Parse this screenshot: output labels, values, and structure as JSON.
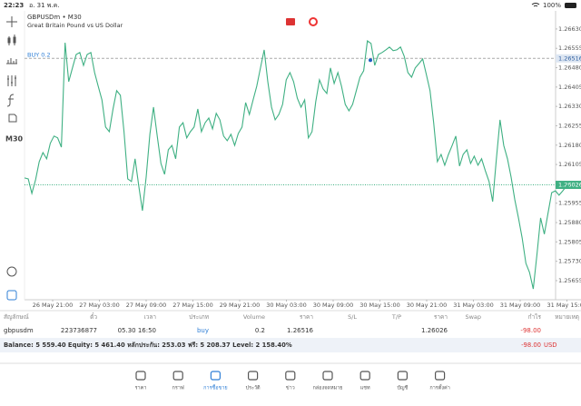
{
  "status_bar": {
    "time": "22:23",
    "date": "อ. 31 พ.ค.",
    "battery": "100%"
  },
  "toolbar": {
    "timeframe": "M30"
  },
  "chart": {
    "type": "line",
    "symbol": "GBPUSDm • M30",
    "description": "Great Britain Pound vs US Dollar",
    "color": "#3fb083",
    "values": [
      1.26053,
      1.26049,
      1.25993,
      1.26046,
      1.26116,
      1.26151,
      1.26127,
      1.26187,
      1.26215,
      1.26208,
      1.26172,
      1.26577,
      1.26426,
      1.26479,
      1.26531,
      1.26539,
      1.26489,
      1.26531,
      1.26539,
      1.26461,
      1.26408,
      1.26355,
      1.2625,
      1.26232,
      1.2632,
      1.26391,
      1.26373,
      1.26232,
      1.26049,
      1.26039,
      1.26127,
      1.26021,
      1.25926,
      1.26056,
      1.26222,
      1.26327,
      1.26215,
      1.26109,
      1.26067,
      1.26162,
      1.26179,
      1.26127,
      1.2625,
      1.26267,
      1.26208,
      1.26232,
      1.2625,
      1.2632,
      1.26232,
      1.26267,
      1.26285,
      1.26243,
      1.26303,
      1.26278,
      1.26215,
      1.26197,
      1.26222,
      1.26179,
      1.26225,
      1.2625,
      1.26345,
      1.26299,
      1.26355,
      1.26408,
      1.26479,
      1.26549,
      1.26426,
      1.26327,
      1.26278,
      1.26299,
      1.26338,
      1.26433,
      1.26461,
      1.26426,
      1.26362,
      1.26327,
      1.26355,
      1.26208,
      1.26232,
      1.26348,
      1.26433,
      1.26398,
      1.2638,
      1.26479,
      1.26419,
      1.26461,
      1.26408,
      1.26338,
      1.26313,
      1.26338,
      1.26391,
      1.26443,
      1.26468,
      1.26584,
      1.26574,
      1.26489,
      1.26531,
      1.26539,
      1.26549,
      1.2656,
      1.26546,
      1.26549,
      1.2656,
      1.26524,
      1.26461,
      1.26443,
      1.26479,
      1.26496,
      1.26514,
      1.26454,
      1.26391,
      1.26267,
      1.26116,
      1.26144,
      1.26102,
      1.26144,
      1.26179,
      1.26215,
      1.26099,
      1.26144,
      1.26162,
      1.26109,
      1.26137,
      1.26102,
      1.26127,
      1.26081,
      1.26039,
      1.25961,
      1.26127,
      1.26278,
      1.26179,
      1.26127,
      1.26056,
      1.25968,
      1.25898,
      1.2582,
      1.25722,
      1.25687,
      1.25623,
      1.25757,
      1.25898,
      1.25835,
      1.25915,
      1.25996,
      1.26003,
      1.25986,
      1.26003,
      1.26021,
      1.26026
    ],
    "ylim": [
      1.25581,
      1.267
    ],
    "yticks": [
      {
        "value": 1.2663,
        "label": "1.26630"
      },
      1.26555,
      {
        "value": 1.2648,
        "label": "1.26480"
      },
      1.26405,
      {
        "value": 1.2633,
        "label": "1.26330"
      },
      1.26255,
      {
        "value": 1.2618,
        "label": "1.26180"
      },
      1.26105,
      1.25955,
      {
        "value": 1.2588,
        "label": "1.25880"
      },
      1.25805,
      {
        "value": 1.2573,
        "label": "1.25730"
      },
      1.25655
    ],
    "buy_level": {
      "label": "BUY 0.2",
      "value": 1.26516
    },
    "current_price": 1.26026,
    "time_labels": [
      "26 May 21:00",
      "27 May 03:00",
      "27 May 09:00",
      "27 May 15:00",
      "29 May 21:00",
      "30 May 03:00",
      "30 May 09:00",
      "30 May 15:00",
      "30 May 21:00",
      "31 May 03:00",
      "31 May 09:00",
      "31 May 15:00"
    ]
  },
  "positions": {
    "columns": [
      "สัญลักษณ์",
      "ตั๋ว",
      "เวลา",
      "ประเภท",
      "Volume",
      "ราคา",
      "S/L",
      "T/P",
      "ราคา",
      "Swap",
      "กำไร",
      "หมายเหตุ"
    ],
    "rows": [
      {
        "symbol": "gbpusdm",
        "ticket": "223736877",
        "time": "05.30 16:50",
        "type": "buy",
        "volume": "0.2",
        "open_price": "1.26516",
        "current_price": "1.26026",
        "profit": "-98.00"
      }
    ],
    "summary": "Balance: 5 559.40 Equity: 5 461.40 หลักประกัน: 253.03 ฟรี: 5 208.37 Level: 2 158.40%",
    "total_profit": "-98.00",
    "currency": "USD"
  },
  "nav": [
    {
      "label": "ราคา"
    },
    {
      "label": "กราฟ"
    },
    {
      "label": "การซื้อขาย",
      "active": true
    },
    {
      "label": "ประวัติ"
    },
    {
      "label": "ข่าว"
    },
    {
      "label": "กล่องจดหมาย"
    },
    {
      "label": "แชท"
    },
    {
      "label": "บัญชี"
    },
    {
      "label": "การตั้งค่า"
    }
  ]
}
